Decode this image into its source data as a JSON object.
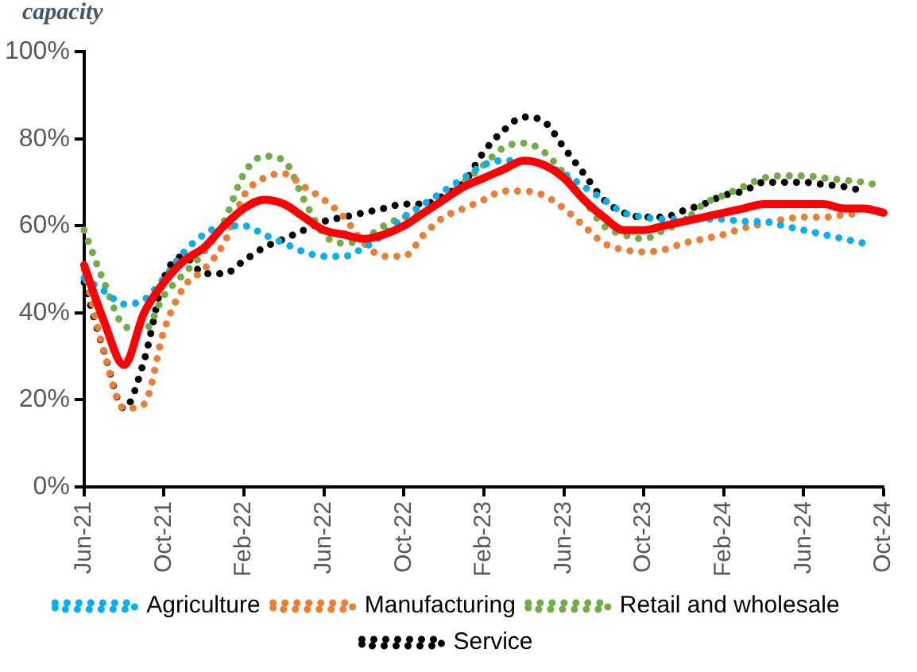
{
  "chart_data": {
    "type": "line",
    "title": "capacity",
    "categories": [
      "Jun-21",
      null,
      null,
      null,
      "Oct-21",
      null,
      null,
      null,
      "Feb-22",
      null,
      null,
      null,
      "Jun-22",
      null,
      null,
      null,
      "Oct-22",
      null,
      null,
      null,
      "Feb-23",
      null,
      null,
      null,
      "Jun-23",
      null,
      null,
      null,
      "Oct-23",
      null,
      null,
      null,
      "Feb-24",
      null,
      null,
      null,
      "Jun-24",
      null,
      null,
      null,
      "Oct-24"
    ],
    "series": [
      {
        "name": "Agriculture",
        "color": "#00b0f0",
        "line_style": "dotted",
        "values": [
          48,
          45,
          42,
          43,
          48,
          54,
          58,
          60,
          60,
          58,
          56,
          54,
          53,
          53,
          55,
          58,
          62,
          65,
          68,
          71,
          74,
          75,
          75,
          74,
          72,
          69,
          66,
          63,
          62,
          61.5,
          61.5,
          61.5,
          61.5,
          61,
          61,
          60,
          59,
          58,
          57,
          56,
          null
        ]
      },
      {
        "name": "Manufacturing",
        "color": "#ed7d31",
        "line_style": "dotted",
        "values": [
          50,
          31,
          18,
          19,
          36,
          46,
          50,
          56,
          67,
          71,
          72,
          69,
          66,
          62,
          56,
          53,
          53,
          58,
          62,
          64,
          66,
          68,
          68,
          67,
          64,
          60,
          56,
          54.5,
          54,
          54.5,
          56,
          57,
          58,
          59.5,
          60.5,
          61.5,
          62,
          62,
          62.5,
          63,
          null
        ]
      },
      {
        "name": "Retail and wholesale",
        "color": "#70ad47",
        "line_style": "dotted",
        "values": [
          59,
          47,
          37,
          36,
          44,
          49,
          54,
          61,
          72,
          76,
          75,
          66,
          58,
          56,
          57,
          60,
          62,
          63,
          66,
          70,
          74,
          78,
          79,
          77,
          72,
          66,
          60,
          58,
          57,
          59,
          61,
          65,
          67,
          69,
          71,
          71.5,
          71.5,
          71,
          70.5,
          70,
          69
        ]
      },
      {
        "name": "Service",
        "color": "#000000",
        "line_style": "dotted",
        "values": [
          47,
          31,
          18,
          29,
          48,
          53,
          49,
          49,
          52,
          55,
          57,
          59,
          61,
          62,
          63,
          64,
          65,
          65,
          67,
          70,
          77,
          82,
          85,
          84,
          78,
          72,
          66,
          63,
          62,
          62,
          63.5,
          65,
          67,
          68,
          70,
          70,
          70,
          69.5,
          69,
          68,
          null
        ]
      },
      {
        "color": "#ff0000",
        "line_style": "solid",
        "values": [
          51,
          38,
          28,
          40,
          47,
          52,
          55,
          60,
          64,
          66,
          65,
          62,
          59,
          58,
          57,
          58,
          60,
          63,
          66,
          69,
          71,
          73,
          75,
          74,
          71,
          66,
          62,
          59,
          59,
          60,
          61,
          62,
          63,
          64,
          65,
          65,
          65,
          65,
          64,
          64,
          63
        ]
      }
    ],
    "ylim": [
      0,
      100
    ],
    "yticks": [
      {
        "value": 0,
        "label": "0%"
      },
      {
        "value": 20,
        "label": "20%"
      },
      {
        "value": 40,
        "label": "40%"
      },
      {
        "value": 60,
        "label": "60%"
      },
      {
        "value": 80,
        "label": "80%"
      },
      {
        "value": 100,
        "label": "100%"
      }
    ],
    "legend": "bottom",
    "marker": "none"
  }
}
